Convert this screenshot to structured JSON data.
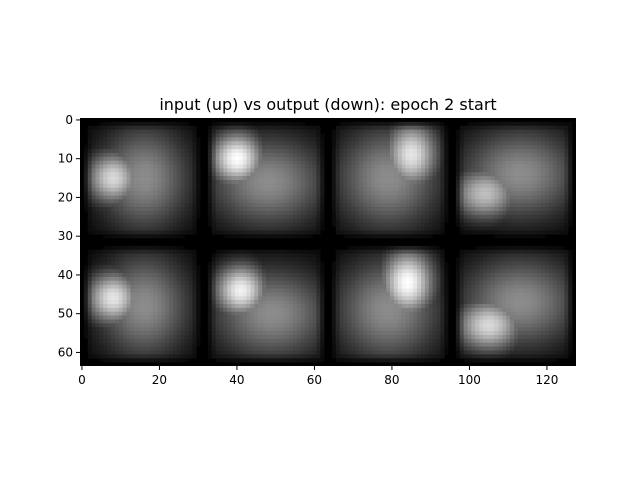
{
  "chart_data": {
    "type": "heatmap",
    "title": "input (up) vs output (down): epoch 2 start",
    "xlabel": "",
    "ylabel": "",
    "colormap": "gray",
    "image_shape": [
      64,
      128
    ],
    "xlim": [
      -0.5,
      127.5
    ],
    "ylim": [
      63.5,
      -0.5
    ],
    "x_ticks": [
      0,
      20,
      40,
      60,
      80,
      100,
      120
    ],
    "y_ticks": [
      0,
      10,
      20,
      30,
      40,
      50,
      60
    ],
    "x_tick_labels": [
      "0",
      "20",
      "40",
      "60",
      "80",
      "100",
      "120"
    ],
    "y_tick_labels": [
      "0",
      "10",
      "20",
      "30",
      "40",
      "50",
      "60"
    ],
    "grid": false,
    "legend": "none",
    "tiles": [
      {
        "row": 0,
        "col": 0,
        "blobs": [
          {
            "x": 8,
            "y": 15,
            "w": 4,
            "h": 4,
            "v": 0.85
          },
          {
            "x": 16,
            "y": 15,
            "w": 7,
            "h": 8,
            "v": 0.55
          }
        ]
      },
      {
        "row": 0,
        "col": 1,
        "blobs": [
          {
            "x": 40,
            "y": 10,
            "w": 4,
            "h": 4,
            "v": 1.0
          },
          {
            "x": 48,
            "y": 16,
            "w": 9,
            "h": 7,
            "v": 0.55
          }
        ]
      },
      {
        "row": 0,
        "col": 2,
        "blobs": [
          {
            "x": 85,
            "y": 9,
            "w": 4,
            "h": 5,
            "v": 0.9
          },
          {
            "x": 79,
            "y": 15,
            "w": 8,
            "h": 8,
            "v": 0.55
          }
        ]
      },
      {
        "row": 0,
        "col": 3,
        "blobs": [
          {
            "x": 104,
            "y": 19,
            "w": 5,
            "h": 4,
            "v": 0.75
          },
          {
            "x": 113,
            "y": 14,
            "w": 9,
            "h": 7,
            "v": 0.55
          }
        ]
      },
      {
        "row": 1,
        "col": 0,
        "blobs": [
          {
            "x": 8,
            "y": 46,
            "w": 4,
            "h": 4,
            "v": 0.9
          },
          {
            "x": 16,
            "y": 48,
            "w": 7,
            "h": 8,
            "v": 0.55
          }
        ]
      },
      {
        "row": 1,
        "col": 1,
        "blobs": [
          {
            "x": 41,
            "y": 44,
            "w": 4,
            "h": 4,
            "v": 0.95
          },
          {
            "x": 49,
            "y": 50,
            "w": 9,
            "h": 7,
            "v": 0.55
          }
        ]
      },
      {
        "row": 1,
        "col": 2,
        "blobs": [
          {
            "x": 84,
            "y": 42,
            "w": 4,
            "h": 5,
            "v": 1.0
          },
          {
            "x": 79,
            "y": 49,
            "w": 8,
            "h": 8,
            "v": 0.55
          }
        ]
      },
      {
        "row": 1,
        "col": 3,
        "blobs": [
          {
            "x": 105,
            "y": 53,
            "w": 5,
            "h": 4,
            "v": 0.85
          },
          {
            "x": 113,
            "y": 47,
            "w": 9,
            "h": 7,
            "v": 0.55
          }
        ]
      }
    ]
  }
}
